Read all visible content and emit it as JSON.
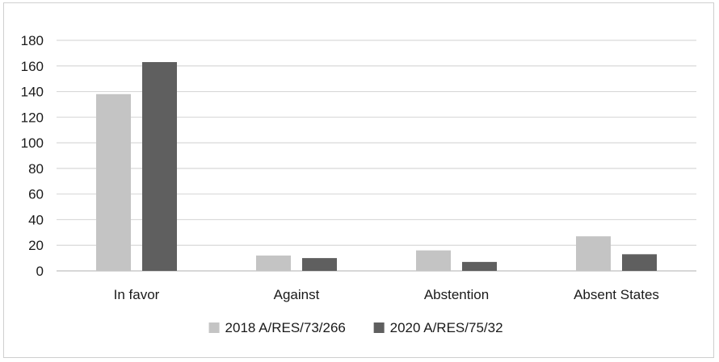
{
  "chart_data": {
    "type": "bar",
    "title": "",
    "xlabel": "",
    "ylabel": "",
    "categories": [
      "In favor",
      "Against",
      "Abstention",
      "Absent States"
    ],
    "series": [
      {
        "name": "2018 A/RES/73/266",
        "values": [
          138,
          12,
          16,
          27
        ],
        "color": "#c4c4c4"
      },
      {
        "name": "2020 A/RES/75/32",
        "values": [
          163,
          10,
          7,
          13
        ],
        "color": "#5f5f5f"
      }
    ],
    "ylim": [
      0,
      180
    ],
    "yticks": [
      0,
      20,
      40,
      60,
      80,
      100,
      120,
      140,
      160,
      180
    ],
    "grid": true,
    "legend": "bottom"
  }
}
